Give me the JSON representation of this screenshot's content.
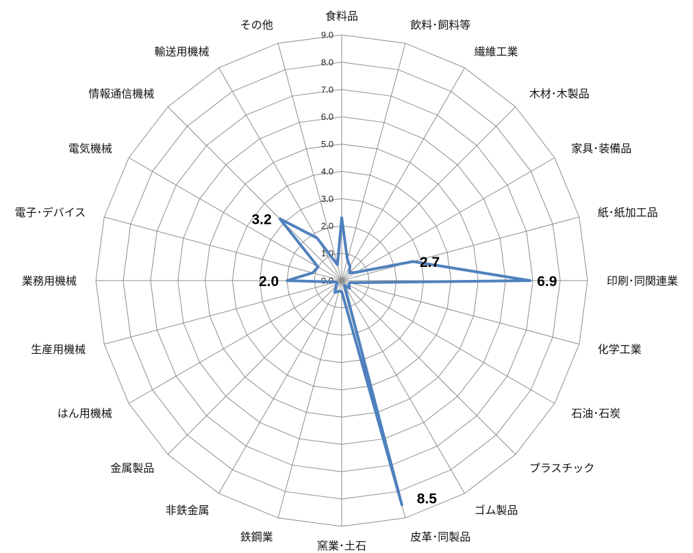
{
  "chart_data": {
    "type": "radar",
    "categories": [
      "食料品",
      "飲料･飼料等",
      "繊維工業",
      "木材･木製品",
      "家具･装備品",
      "紙･紙加工品",
      "印刷･同関連業",
      "化学工業",
      "石油･石炭",
      "プラスチック",
      "ゴム製品",
      "皮革･同製品",
      "窯業･土石",
      "鉄鋼業",
      "非鉄金属",
      "金属製品",
      "はん用機械",
      "生産用機械",
      "業務用機械",
      "電子･デバイス",
      "電気機械",
      "情報通信機械",
      "輸送用機械",
      "その他"
    ],
    "series": [
      {
        "values": [
          2.3,
          0.8,
          0.6,
          0.4,
          0.6,
          2.7,
          6.9,
          0.3,
          0.3,
          0.4,
          0.2,
          8.5,
          0.4,
          0.4,
          0.5,
          0.3,
          0.2,
          0.2,
          2.0,
          1.1,
          1.0,
          3.2,
          1.8,
          0.6
        ]
      }
    ],
    "rticks": [
      "0.0",
      "1.0",
      "2.0",
      "3.0",
      "4.0",
      "5.0",
      "6.0",
      "7.0",
      "8.0",
      "9.0"
    ],
    "rlim": [
      0,
      9
    ],
    "data_labels": [
      {
        "index": 5,
        "text": "2.7"
      },
      {
        "index": 6,
        "text": "6.9"
      },
      {
        "index": 11,
        "text": "8.5"
      },
      {
        "index": 18,
        "text": "2.0"
      },
      {
        "index": 21,
        "text": "3.2"
      }
    ],
    "colors": {
      "series": "#4f81bd",
      "grid": "#8c8c8c"
    },
    "grid": true
  }
}
